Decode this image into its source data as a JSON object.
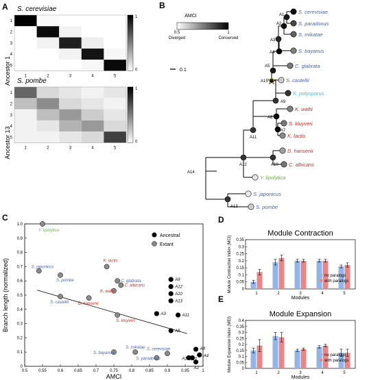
{
  "colors": {
    "blue": "#4a64ad",
    "red": "#c8302c",
    "green": "#6ab23f",
    "cyan": "#4fb8c9",
    "grey_node": "#8a8a8a",
    "bar_no": "#93b4e6",
    "bar_with": "#e6888a"
  },
  "panelA": {
    "label": "A",
    "colorbar_ticks": [
      "1",
      "0"
    ],
    "ticks": [
      "1",
      "2",
      "3",
      "4",
      "5"
    ],
    "matrices": [
      {
        "title": "S. cerevisiae",
        "ylabel": "Ancestor 1",
        "values": [
          [
            1.0,
            0.02,
            0.0,
            0.0,
            0.0
          ],
          [
            0.0,
            0.95,
            0.05,
            0.0,
            0.0
          ],
          [
            0.0,
            0.05,
            0.88,
            0.07,
            0.0
          ],
          [
            0.0,
            0.0,
            0.05,
            0.92,
            0.03
          ],
          [
            0.0,
            0.0,
            0.0,
            0.03,
            0.96
          ]
        ]
      },
      {
        "title": "S. pombe",
        "ylabel": "Ancestor 13",
        "values": [
          [
            0.6,
            0.15,
            0.1,
            0.05,
            0.1
          ],
          [
            0.25,
            0.45,
            0.15,
            0.1,
            0.05
          ],
          [
            0.05,
            0.25,
            0.4,
            0.2,
            0.1
          ],
          [
            0.05,
            0.1,
            0.3,
            0.4,
            0.15
          ],
          [
            0.05,
            0.05,
            0.1,
            0.15,
            0.75
          ]
        ]
      }
    ]
  },
  "panelB": {
    "label": "B",
    "legend_title": "AMCI",
    "legend_min": "0.5",
    "legend_max": "1",
    "legend_low": "Diverged",
    "legend_high": "Conserved",
    "scale_label": "0.1",
    "leaves": [
      {
        "name": "S. cerevisiae",
        "color": "blue",
        "amci": 0.97
      },
      {
        "name": "S. paradoxus",
        "color": "blue",
        "amci": 0.86
      },
      {
        "name": "S. mikatae",
        "color": "blue",
        "amci": 0.81
      },
      {
        "name": "S. bayanus",
        "color": "blue",
        "amci": 0.75
      },
      {
        "name": "C. glabrata",
        "color": "blue",
        "amci": 0.76
      },
      {
        "name": "S. castellii",
        "color": "blue",
        "amci": 0.6
      },
      {
        "name": "K. polysporus",
        "color": "cyan",
        "amci": 0.9
      },
      {
        "name": "K. waltii",
        "color": "red",
        "amci": 0.75
      },
      {
        "name": "S. kluyveri",
        "color": "red",
        "amci": 0.76
      },
      {
        "name": "K. lactis",
        "color": "red",
        "amci": 0.73
      },
      {
        "name": "D. hansenii",
        "color": "red",
        "amci": 0.68
      },
      {
        "name": "C. albicans",
        "color": "red",
        "amci": 0.77
      },
      {
        "name": "Y. lipolytica",
        "color": "green",
        "amci": 0.55
      },
      {
        "name": "S. japonicus",
        "color": "blue",
        "amci": 0.54
      },
      {
        "name": "S. pombe",
        "color": "blue",
        "amci": 0.6
      }
    ],
    "internal_labels": [
      "A1",
      "A2",
      "A3",
      "A4",
      "A5",
      "A15",
      "A9",
      "A8",
      "A7",
      "A11",
      "A12",
      "A10",
      "A14",
      "A13"
    ]
  },
  "panelC": {
    "label": "C",
    "chart_data": {
      "type": "scatter",
      "xlabel": "AMCI",
      "ylabel": "Branch length (normalized)",
      "xlim": [
        0.5,
        1.0
      ],
      "ylim": [
        0,
        1.0
      ],
      "xticks": [
        "0.5",
        "0.55",
        "0.6",
        "0.65",
        "0.7",
        "0.75",
        "0.8",
        "0.85",
        "0.9",
        "0.95",
        "1"
      ],
      "yticks": [
        "0",
        "0.1",
        "0.2",
        "0.3",
        "0.4",
        "0.5",
        "0.6",
        "0.7",
        "0.8",
        "0.9",
        "1.0"
      ],
      "legend": [
        "Ancestral",
        "Extant"
      ],
      "legend_position": "top-right",
      "fit_line": [
        [
          0.535,
          0.535
        ],
        [
          0.955,
          0.23
        ]
      ],
      "series": [
        {
          "name": "Ancestral",
          "points": [
            {
              "x": 0.91,
              "y": 0.61,
              "label": "A9"
            },
            {
              "x": 0.91,
              "y": 0.56,
              "label": "A12"
            },
            {
              "x": 0.91,
              "y": 0.51,
              "label": "A10"
            },
            {
              "x": 0.91,
              "y": 0.46,
              "label": "A13"
            },
            {
              "x": 0.87,
              "y": 0.37,
              "label": "A3"
            },
            {
              "x": 0.93,
              "y": 0.36,
              "label": "A11"
            },
            {
              "x": 0.91,
              "y": 0.25,
              "label": "A5"
            },
            {
              "x": 0.98,
              "y": 0.12,
              "label": "A8"
            },
            {
              "x": 0.99,
              "y": 0.08,
              "label": "A4"
            },
            {
              "x": 0.96,
              "y": 0.06,
              "label": "A1"
            },
            {
              "x": 0.97,
              "y": 0.06,
              "label": "A7"
            },
            {
              "x": 0.98,
              "y": 0.03,
              "label": "A2"
            }
          ]
        },
        {
          "name": "Extant",
          "points": [
            {
              "x": 0.55,
              "y": 1.0,
              "label": "Y. lipolytica",
              "color": "green"
            },
            {
              "x": 0.54,
              "y": 0.67,
              "label": "S. japonicus",
              "color": "blue"
            },
            {
              "x": 0.6,
              "y": 0.64,
              "label": "S. pombe",
              "color": "blue"
            },
            {
              "x": 0.6,
              "y": 0.49,
              "label": "S. castellii",
              "color": "blue"
            },
            {
              "x": 0.73,
              "y": 0.7,
              "label": "K. lactis",
              "color": "red"
            },
            {
              "x": 0.76,
              "y": 0.6,
              "label": "C. glabrata",
              "color": "blue"
            },
            {
              "x": 0.77,
              "y": 0.57,
              "label": "C. albicans",
              "color": "red"
            },
            {
              "x": 0.75,
              "y": 0.53,
              "label": "K. waltii",
              "color": "red"
            },
            {
              "x": 0.68,
              "y": 0.48,
              "label": "D. hansenii",
              "color": "red"
            },
            {
              "x": 0.76,
              "y": 0.36,
              "label": "S. kluyveri",
              "color": "red"
            },
            {
              "x": 0.75,
              "y": 0.1,
              "label": "S. bayanus",
              "color": "blue"
            },
            {
              "x": 0.81,
              "y": 0.1,
              "label": "S. mikatae",
              "color": "blue"
            },
            {
              "x": 0.9,
              "y": 0.09,
              "label": "S. cerevisiae",
              "color": "blue"
            },
            {
              "x": 0.87,
              "y": 0.06,
              "label": "S. paradoxus",
              "color": "blue"
            }
          ]
        }
      ]
    }
  },
  "panelD": {
    "label": "D",
    "chart_data": {
      "type": "bar",
      "title": "Module Contraction",
      "xlabel": "Modules",
      "ylabel": "Module Contraction Index (MCI)",
      "categories": [
        "1",
        "2",
        "3",
        "4",
        "5"
      ],
      "ylim": [
        0,
        0.35
      ],
      "yticks": [
        "0",
        "0.05",
        "0.1",
        "0.15",
        "0.2",
        "0.25",
        "0.3",
        "0.35"
      ],
      "legend_position": "bottom-right",
      "series": [
        {
          "name": "no paralogs",
          "values": [
            0.05,
            0.19,
            0.2,
            0.2,
            0.16
          ],
          "errors": [
            0.01,
            0.02,
            0.01,
            0.01,
            0.01
          ]
        },
        {
          "name": "with paralogs",
          "values": [
            0.12,
            0.22,
            0.2,
            0.2,
            0.17
          ],
          "errors": [
            0.02,
            0.02,
            0.01,
            0.01,
            0.015
          ]
        }
      ]
    }
  },
  "panelE": {
    "label": "E",
    "chart_data": {
      "type": "bar",
      "title": "Module Expansion",
      "xlabel": "Modules",
      "ylabel": "Module Expansion Index (MEI)",
      "categories": [
        "1",
        "2",
        "3",
        "4",
        "5"
      ],
      "ylim": [
        0,
        0.4
      ],
      "yticks": [
        "0",
        "0.05",
        "0.1",
        "0.15",
        "0.2",
        "0.25",
        "0.3",
        "0.35",
        "0.4"
      ],
      "legend_position": "bottom-right",
      "series": [
        {
          "name": "no paralogs",
          "values": [
            0.15,
            0.27,
            0.15,
            0.18,
            0.13
          ],
          "errors": [
            0.02,
            0.03,
            0.01,
            0.01,
            0.03
          ]
        },
        {
          "name": "with paralogs",
          "values": [
            0.19,
            0.26,
            0.16,
            0.19,
            0.13
          ],
          "errors": [
            0.05,
            0.04,
            0.01,
            0.01,
            0.03
          ]
        }
      ]
    }
  }
}
